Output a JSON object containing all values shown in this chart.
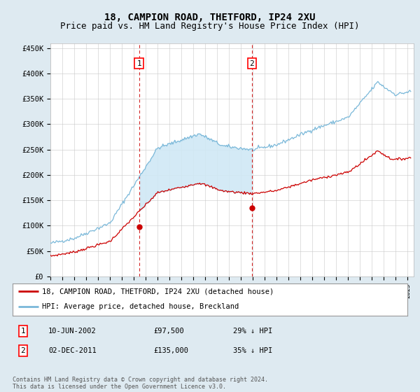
{
  "title": "18, CAMPION ROAD, THETFORD, IP24 2XU",
  "subtitle": "Price paid vs. HM Land Registry's House Price Index (HPI)",
  "ylabel_ticks": [
    "£0",
    "£50K",
    "£100K",
    "£150K",
    "£200K",
    "£250K",
    "£300K",
    "£350K",
    "£400K",
    "£450K"
  ],
  "ytick_values": [
    0,
    50000,
    100000,
    150000,
    200000,
    250000,
    300000,
    350000,
    400000,
    450000
  ],
  "ylim": [
    0,
    460000
  ],
  "xlim_start": 1995.0,
  "xlim_end": 2025.5,
  "hpi_color": "#7ab8d9",
  "price_color": "#cc0000",
  "fill_color": "#d0e8f5",
  "marker1_date": 2002.44,
  "marker1_price": 97500,
  "marker2_date": 2011.92,
  "marker2_price": 135000,
  "legend_line1": "18, CAMPION ROAD, THETFORD, IP24 2XU (detached house)",
  "legend_line2": "HPI: Average price, detached house, Breckland",
  "table_row1": [
    "1",
    "10-JUN-2002",
    "£97,500",
    "29% ↓ HPI"
  ],
  "table_row2": [
    "2",
    "02-DEC-2011",
    "£135,000",
    "35% ↓ HPI"
  ],
  "footer": "Contains HM Land Registry data © Crown copyright and database right 2024.\nThis data is licensed under the Open Government Licence v3.0.",
  "bg_color": "#deeaf1",
  "plot_bg": "#ffffff",
  "title_fontsize": 10,
  "subtitle_fontsize": 9
}
